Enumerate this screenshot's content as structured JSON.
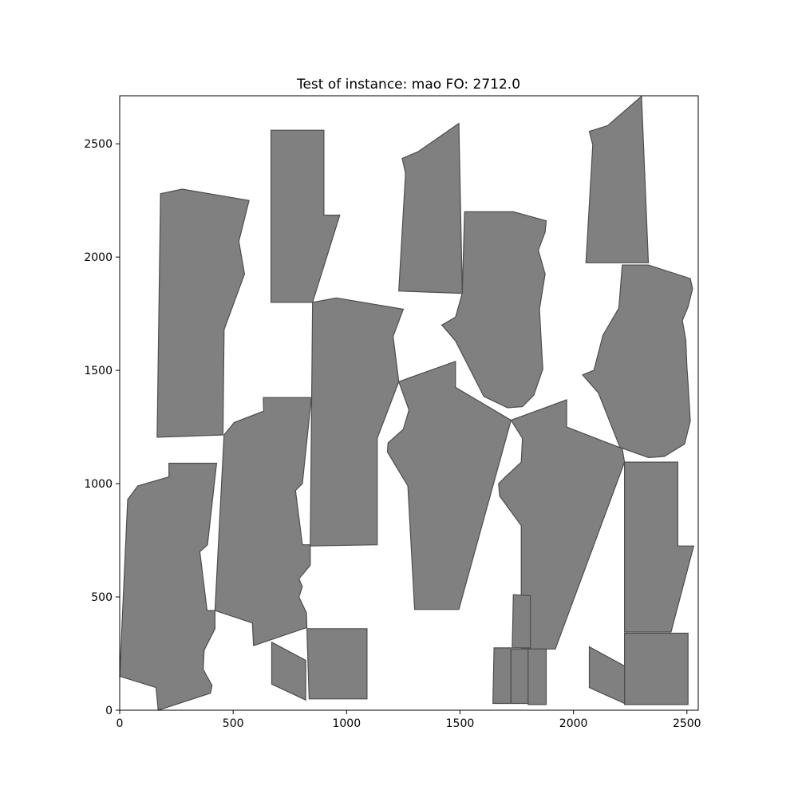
{
  "chart_data": {
    "type": "polygon-layout",
    "title": "Test of instance: mao  FO: 2712.0",
    "xlim": [
      0,
      2550
    ],
    "ylim": [
      0,
      2712
    ],
    "x_ticks": [
      0,
      500,
      1000,
      1500,
      2000,
      2500
    ],
    "y_ticks": [
      0,
      500,
      1000,
      1500,
      2000,
      2500
    ],
    "fill_color": "#808080",
    "edge_color": "#4d4d4d",
    "grid": false,
    "polygons": [
      [
        [
          0,
          150
        ],
        [
          160,
          100
        ],
        [
          170,
          0
        ],
        [
          400,
          75
        ],
        [
          407,
          110
        ],
        [
          368,
          180
        ],
        [
          372,
          265
        ],
        [
          420,
          360
        ],
        [
          420,
          440
        ],
        [
          385,
          440
        ],
        [
          353,
          700
        ],
        [
          387,
          730
        ],
        [
          427,
          1090
        ],
        [
          217,
          1090
        ],
        [
          217,
          1030
        ],
        [
          80,
          990
        ],
        [
          35,
          930
        ],
        [
          0,
          150
        ]
      ],
      [
        [
          420,
          440
        ],
        [
          585,
          385
        ],
        [
          590,
          285
        ],
        [
          825,
          365
        ],
        [
          823,
          430
        ],
        [
          790,
          500
        ],
        [
          805,
          545
        ],
        [
          790,
          580
        ],
        [
          840,
          640
        ],
        [
          840,
          730
        ],
        [
          805,
          730
        ],
        [
          775,
          970
        ],
        [
          805,
          1000
        ],
        [
          845,
          1380
        ],
        [
          633,
          1380
        ],
        [
          635,
          1320
        ],
        [
          505,
          1270
        ],
        [
          460,
          1215
        ],
        [
          420,
          440
        ]
      ],
      [
        [
          165,
          1205
        ],
        [
          455,
          1215
        ],
        [
          460,
          1680
        ],
        [
          550,
          1925
        ],
        [
          525,
          2070
        ],
        [
          570,
          2250
        ],
        [
          275,
          2300
        ],
        [
          180,
          2280
        ],
        [
          165,
          1205
        ]
      ],
      [
        [
          667,
          1800
        ],
        [
          850,
          1800
        ],
        [
          970,
          2185
        ],
        [
          900,
          2185
        ],
        [
          900,
          2560
        ],
        [
          667,
          2560
        ],
        [
          667,
          1800
        ]
      ],
      [
        [
          840,
          725
        ],
        [
          1135,
          730
        ],
        [
          1135,
          1200
        ],
        [
          1230,
          1450
        ],
        [
          1205,
          1650
        ],
        [
          1250,
          1770
        ],
        [
          955,
          1820
        ],
        [
          850,
          1800
        ],
        [
          840,
          725
        ]
      ],
      [
        [
          1230,
          1450
        ],
        [
          1275,
          1325
        ],
        [
          1250,
          1240
        ],
        [
          1183,
          1180
        ],
        [
          1180,
          1140
        ],
        [
          1270,
          990
        ],
        [
          1300,
          445
        ],
        [
          1495,
          445
        ],
        [
          1725,
          1280
        ],
        [
          1480,
          1425
        ],
        [
          1480,
          1540
        ],
        [
          1230,
          1450
        ]
      ],
      [
        [
          1230,
          1850
        ],
        [
          1510,
          1840
        ],
        [
          1495,
          2590
        ],
        [
          1315,
          2465
        ],
        [
          1245,
          2435
        ],
        [
          1260,
          2370
        ],
        [
          1230,
          1850
        ]
      ],
      [
        [
          1510,
          1840
        ],
        [
          1480,
          1735
        ],
        [
          1420,
          1700
        ],
        [
          1480,
          1630
        ],
        [
          1605,
          1385
        ],
        [
          1710,
          1335
        ],
        [
          1775,
          1340
        ],
        [
          1825,
          1390
        ],
        [
          1865,
          1505
        ],
        [
          1855,
          1680
        ],
        [
          1850,
          1770
        ],
        [
          1875,
          1925
        ],
        [
          1845,
          2030
        ],
        [
          1875,
          2110
        ],
        [
          1880,
          2160
        ],
        [
          1735,
          2200
        ],
        [
          1520,
          2200
        ],
        [
          1510,
          1840
        ]
      ],
      [
        [
          1725,
          1280
        ],
        [
          1970,
          1370
        ],
        [
          1970,
          1250
        ],
        [
          2215,
          1155
        ],
        [
          2225,
          1095
        ],
        [
          1920,
          270
        ],
        [
          1770,
          270
        ],
        [
          1770,
          815
        ],
        [
          1675,
          945
        ],
        [
          1670,
          1000
        ],
        [
          1700,
          1030
        ],
        [
          1770,
          1095
        ],
        [
          1775,
          1200
        ],
        [
          1725,
          1280
        ]
      ],
      [
        [
          2055,
          1975
        ],
        [
          2330,
          1975
        ],
        [
          2300,
          2710
        ],
        [
          2150,
          2580
        ],
        [
          2070,
          2555
        ],
        [
          2085,
          2495
        ],
        [
          2055,
          1975
        ]
      ],
      [
        [
          2215,
          1965
        ],
        [
          2330,
          1965
        ],
        [
          2515,
          1905
        ],
        [
          2525,
          1860
        ],
        [
          2505,
          1780
        ],
        [
          2480,
          1720
        ],
        [
          2495,
          1635
        ],
        [
          2500,
          1515
        ],
        [
          2505,
          1445
        ],
        [
          2515,
          1275
        ],
        [
          2490,
          1175
        ],
        [
          2400,
          1120
        ],
        [
          2330,
          1115
        ],
        [
          2205,
          1160
        ],
        [
          2110,
          1400
        ],
        [
          2040,
          1480
        ],
        [
          2090,
          1500
        ],
        [
          2130,
          1655
        ],
        [
          2200,
          1775
        ],
        [
          2215,
          1965
        ]
      ],
      [
        [
          2225,
          1095
        ],
        [
          2460,
          1095
        ],
        [
          2460,
          725
        ],
        [
          2530,
          725
        ],
        [
          2430,
          345
        ],
        [
          2225,
          345
        ],
        [
          2225,
          1095
        ]
      ],
      [
        [
          2225,
          340
        ],
        [
          2505,
          340
        ],
        [
          2505,
          25
        ],
        [
          2225,
          25
        ],
        [
          2225,
          340
        ]
      ],
      [
        [
          2070,
          100
        ],
        [
          2225,
          30
        ],
        [
          2225,
          195
        ],
        [
          2070,
          280
        ],
        [
          2070,
          100
        ]
      ],
      [
        [
          1735,
          510
        ],
        [
          1810,
          505
        ],
        [
          1810,
          275
        ],
        [
          1730,
          275
        ],
        [
          1735,
          510
        ]
      ],
      [
        [
          1645,
          30
        ],
        [
          1725,
          30
        ],
        [
          1725,
          275
        ],
        [
          1650,
          275
        ],
        [
          1645,
          30
        ]
      ],
      [
        [
          1725,
          30
        ],
        [
          1800,
          30
        ],
        [
          1805,
          270
        ],
        [
          1725,
          270
        ],
        [
          1725,
          30
        ]
      ],
      [
        [
          1800,
          25
        ],
        [
          1880,
          25
        ],
        [
          1880,
          270
        ],
        [
          1800,
          270
        ],
        [
          1800,
          25
        ]
      ],
      [
        [
          835,
          50
        ],
        [
          1090,
          50
        ],
        [
          1090,
          360
        ],
        [
          825,
          360
        ],
        [
          835,
          50
        ]
      ],
      [
        [
          670,
          115
        ],
        [
          820,
          45
        ],
        [
          820,
          220
        ],
        [
          670,
          300
        ],
        [
          670,
          115
        ]
      ]
    ]
  }
}
